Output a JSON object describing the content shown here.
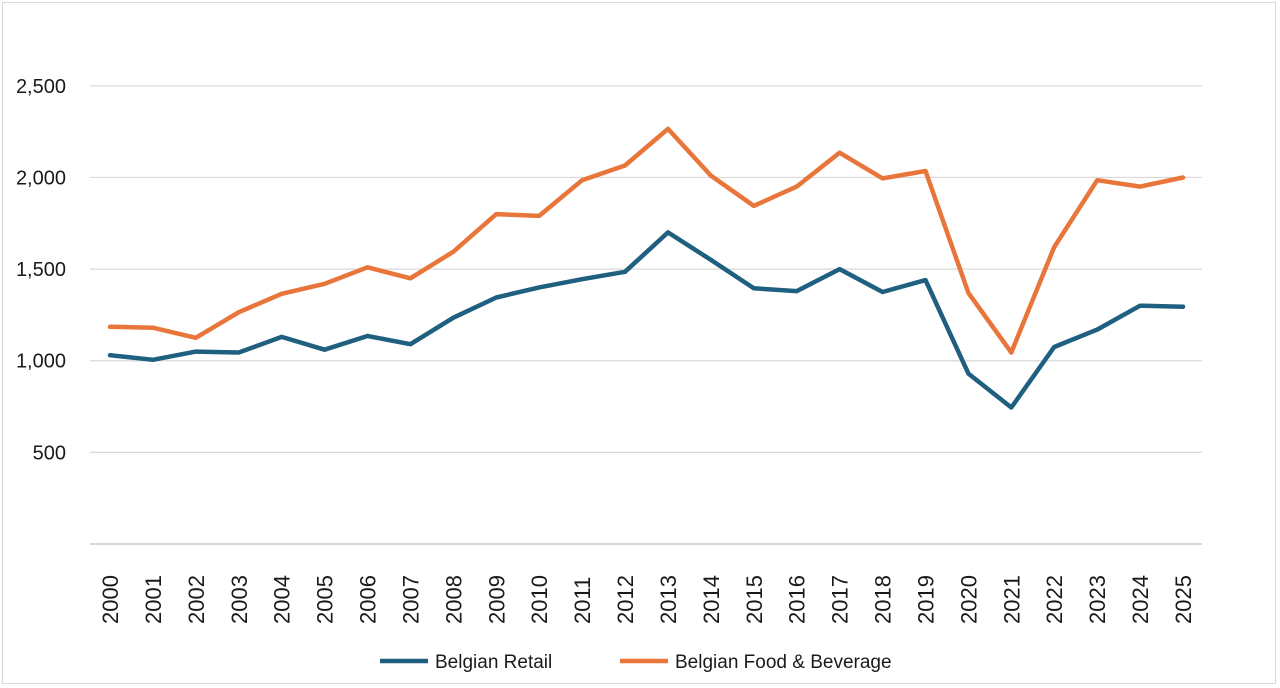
{
  "chart_data": {
    "type": "line",
    "title": "",
    "xlabel": "",
    "ylabel": "",
    "x": [
      "2000",
      "2001",
      "2002",
      "2003",
      "2004",
      "2005",
      "2006",
      "2007",
      "2008",
      "2009",
      "2010",
      "2011",
      "2012",
      "2013",
      "2014",
      "2015",
      "2016",
      "2017",
      "2018",
      "2019",
      "2020",
      "2021",
      "2022",
      "2023",
      "2024",
      "2025"
    ],
    "y_ticks": [
      500,
      1000,
      1500,
      2000,
      2500
    ],
    "y_tick_labels": [
      "500",
      "1,000",
      "1,500",
      "2,000",
      "2,500"
    ],
    "ylim": [
      0,
      2750
    ],
    "grid": "horizontal",
    "legend_position": "bottom",
    "series": [
      {
        "name": "Belgian Retail",
        "color": "#1f5f7f",
        "values": [
          1030,
          1005,
          1050,
          1045,
          1130,
          1060,
          1135,
          1090,
          1235,
          1345,
          1400,
          1445,
          1485,
          1700,
          1550,
          1395,
          1380,
          1500,
          1375,
          1440,
          930,
          745,
          1075,
          1170,
          1300,
          1295
        ]
      },
      {
        "name": "Belgian Food & Beverage",
        "color": "#e8763a",
        "values": [
          1185,
          1180,
          1125,
          1265,
          1365,
          1420,
          1510,
          1450,
          1595,
          1800,
          1790,
          1985,
          2065,
          2265,
          2010,
          1845,
          1950,
          2135,
          1995,
          2035,
          1370,
          1045,
          1620,
          1985,
          1950,
          2000
        ]
      }
    ]
  }
}
